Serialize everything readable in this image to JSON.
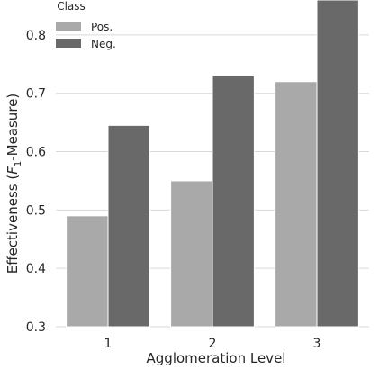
{
  "chart_data": {
    "type": "bar",
    "xlabel": "Agglomeration Level",
    "ylabel": {
      "prefix": "Effectiveness (",
      "math_var": "F",
      "math_sub": "1",
      "suffix": "-Measure)"
    },
    "categories": [
      "1",
      "2",
      "3"
    ],
    "series": [
      {
        "name": "Pos.",
        "values": [
          0.49,
          0.55,
          0.72
        ],
        "color": "#a9a9a9"
      },
      {
        "name": "Neg.",
        "values": [
          0.645,
          0.73,
          0.86
        ],
        "color": "#696969"
      }
    ],
    "ylim": [
      0.3,
      0.86
    ],
    "yticks": [
      "0.3",
      "0.4",
      "0.5",
      "0.6",
      "0.7",
      "0.8"
    ],
    "grid": "horizontal",
    "gridColor": "#d9d9d9",
    "legend": {
      "title": "Class",
      "placement": "top-left"
    }
  }
}
